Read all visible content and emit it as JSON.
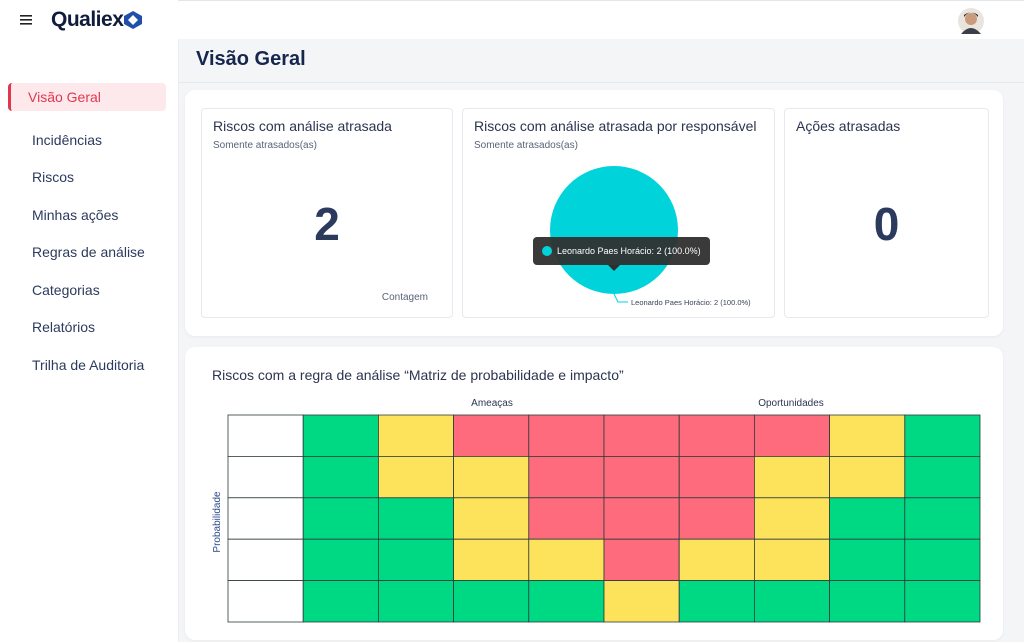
{
  "app": {
    "logo": "Qualiex"
  },
  "nav": {
    "active": 0,
    "items": [
      "Visão Geral",
      "Incidências",
      "Riscos",
      "Minhas ações",
      "Regras de análise",
      "Categorias",
      "Relatórios",
      "Trilha de Auditoria"
    ]
  },
  "header": {
    "title": "Visão Geral"
  },
  "cards": [
    {
      "title": "Riscos com análise atrasada",
      "subtitle": "Somente atrasados(as)",
      "value": "2",
      "caption": "Contagem"
    },
    {
      "title": "Riscos com análise atrasada por responsável",
      "subtitle": "Somente atrasados(as)",
      "pie": {
        "color": "#00d4da",
        "slices": [
          {
            "label": "Leonardo Paes Horácio: 2 (100.0%)",
            "value": 2
          }
        ]
      }
    },
    {
      "title": "Ações atrasadas",
      "value": "0"
    }
  ],
  "matrix": {
    "title": "Riscos com a regra de análise “Matriz de probabilidade e impacto”",
    "threats_label": "Ameaças",
    "opportunities_label": "Oportunidades",
    "y_label": "Probabilidade",
    "palette": {
      "W": "#ffffff",
      "G": "#00d984",
      "Y": "#fde35c",
      "R": "#fd6b7d"
    },
    "rows": [
      [
        "W",
        "G",
        "Y",
        "R",
        "R",
        "R",
        "R",
        "R",
        "Y",
        "G"
      ],
      [
        "W",
        "G",
        "Y",
        "Y",
        "R",
        "R",
        "R",
        "Y",
        "Y",
        "G"
      ],
      [
        "W",
        "G",
        "G",
        "Y",
        "R",
        "R",
        "R",
        "Y",
        "G",
        "G"
      ],
      [
        "W",
        "G",
        "G",
        "Y",
        "Y",
        "R",
        "Y",
        "Y",
        "G",
        "G"
      ],
      [
        "W",
        "G",
        "G",
        "G",
        "G",
        "Y",
        "G",
        "G",
        "G",
        "G"
      ]
    ]
  }
}
